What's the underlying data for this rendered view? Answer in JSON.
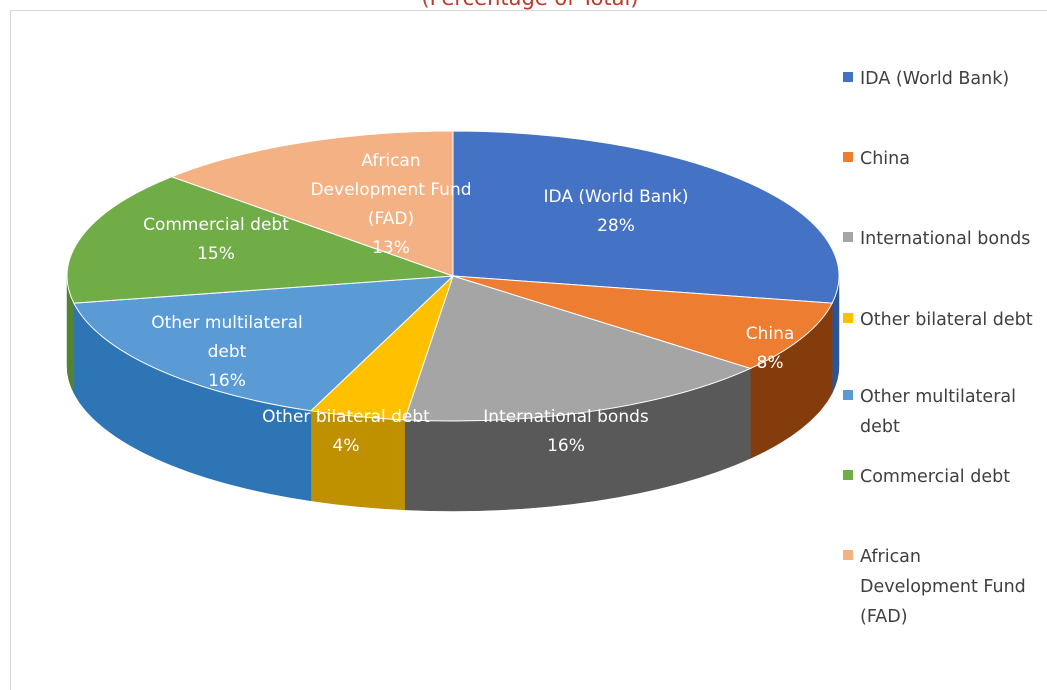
{
  "subtitle": "(Percentage of Total)",
  "chart_data": {
    "type": "pie",
    "variant": "3d",
    "categories": [
      "IDA (World Bank)",
      "China",
      "International bonds",
      "Other bilateral debt",
      "Other multilateral debt",
      "Commercial debt",
      "African Development Fund (FAD)"
    ],
    "values": [
      28,
      8,
      16,
      4,
      16,
      15,
      13
    ],
    "value_labels": [
      "28%",
      "8%",
      "16%",
      "4%",
      "16%",
      "15%",
      "13%"
    ],
    "slice_labels": [
      [
        "IDA (World Bank)",
        "28%"
      ],
      [
        "China",
        "8%"
      ],
      [
        "International bonds",
        "16%"
      ],
      [
        "Other bilateral debt",
        "4%"
      ],
      [
        "Other multilateral",
        "debt",
        "16%"
      ],
      [
        "Commercial debt",
        "15%"
      ],
      [
        "African",
        "Development Fund",
        "(FAD)",
        "13%"
      ]
    ],
    "colors": [
      "#4472c4",
      "#ed7d31",
      "#a5a5a5",
      "#ffc000",
      "#5b9bd5",
      "#70ad47",
      "#f4b183"
    ],
    "side_colors": [
      "#2f5496",
      "#843c0c",
      "#595959",
      "#bf9000",
      "#2e75b6",
      "#548235",
      "#c55a11"
    ],
    "legend_position": "right",
    "legend_labels": [
      "IDA (World Bank)",
      "China",
      "International bonds",
      "Other bilateral debt",
      "Other multilateral\ndebt",
      "Commercial debt",
      "African\nDevelopment Fund\n(FAD)"
    ]
  }
}
